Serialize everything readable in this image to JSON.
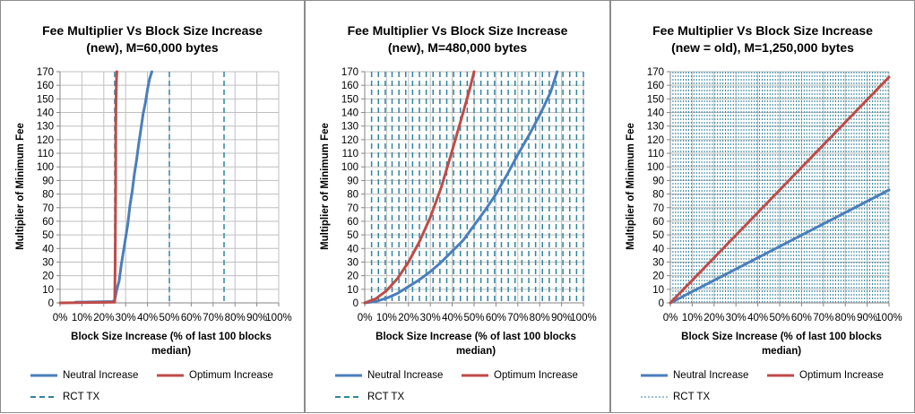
{
  "colors": {
    "neutral": "#4a7ebb",
    "optimum": "#be4b48",
    "rct": "#31859c",
    "grid": "#bfbfbf",
    "axis": "#868686"
  },
  "yticks": [
    "0",
    "10",
    "20",
    "30",
    "40",
    "50",
    "60",
    "70",
    "80",
    "90",
    "100",
    "110",
    "120",
    "130",
    "140",
    "150",
    "160",
    "170"
  ],
  "xticks": [
    "0%",
    "10%",
    "20%",
    "30%",
    "40%",
    "50%",
    "60%",
    "70%",
    "80%",
    "90%",
    "100%"
  ],
  "panels": [
    {
      "title_lines": [
        "Fee Multiplier Vs Block Size Increase",
        "(new), M=60,000 bytes"
      ],
      "ylabel": "Multiplier of Minimum Fee",
      "xlabel": "Block Size Increase (% of last 100 blocks\nmedian)",
      "legend": {
        "neutral": "Neutral Increase",
        "optimum": "Optimum Increase",
        "rct": "RCT TX"
      }
    },
    {
      "title_lines": [
        "Fee Multiplier Vs Block Size Increase",
        "(new), M=480,000 bytes"
      ],
      "ylabel": "Multiplier of Minimum Fee",
      "xlabel": "Block Size Increase (% of last 100 blocks\nmedian)",
      "legend": {
        "neutral": "Neutral Increase",
        "optimum": "Optimum Increase",
        "rct": "RCT TX"
      }
    },
    {
      "title_lines": [
        "Fee Multiplier Vs Block Size Increase",
        "(new = old), M=1,250,000 bytes"
      ],
      "ylabel": "Multiplier of Minimum Fee",
      "xlabel": "Block Size Increase (% of last 100 blocks\nmedian)",
      "legend": {
        "neutral": "Neutral Increase",
        "optimum": "Optimum Increase",
        "rct": "RCT TX"
      }
    }
  ],
  "chart_data": [
    {
      "type": "line",
      "title": "Fee Multiplier Vs Block Size Increase (new), M=60,000 bytes",
      "xlabel": "Block Size Increase (% of last 100 blocks median)",
      "ylabel": "Multiplier of Minimum Fee",
      "xlim": [
        0,
        100
      ],
      "ylim": [
        0,
        170
      ],
      "ytick_step": 10,
      "xtick_step": 10,
      "grid": true,
      "legend_position": "bottom",
      "series": [
        {
          "name": "Neutral Increase",
          "x": [
            7,
            24,
            25,
            26,
            27,
            28,
            29,
            30,
            31,
            32,
            33,
            34,
            35,
            36,
            37,
            38,
            39,
            40,
            41,
            42
          ],
          "y": [
            0.5,
            1,
            2,
            10,
            16,
            28,
            38,
            48,
            58,
            72,
            82,
            95,
            105,
            117,
            128,
            139,
            147,
            157,
            165,
            170
          ]
        },
        {
          "name": "Optimum Increase",
          "x": [
            0,
            25,
            25.2,
            25.4,
            25.5,
            25.6,
            25.8,
            26
          ],
          "y": [
            0,
            0.5,
            30,
            80,
            130,
            150,
            165,
            170
          ]
        }
      ],
      "rct_tx_x": [
        25,
        50,
        75
      ]
    },
    {
      "type": "line",
      "title": "Fee Multiplier Vs Block Size Increase (new), M=480,000 bytes",
      "xlabel": "Block Size Increase (% of last 100 blocks median)",
      "ylabel": "Multiplier of Minimum Fee",
      "xlim": [
        0,
        100
      ],
      "ylim": [
        0,
        170
      ],
      "ytick_step": 10,
      "xtick_step": 10,
      "grid": true,
      "legend_position": "bottom",
      "series": [
        {
          "name": "Neutral Increase",
          "x": [
            0,
            5,
            10,
            15,
            20,
            25,
            30,
            35,
            40,
            45,
            50,
            55,
            60,
            65,
            70,
            75,
            80,
            85,
            88
          ],
          "y": [
            0,
            1,
            3.5,
            7,
            12,
            17,
            23,
            30,
            38,
            46,
            57,
            68,
            80,
            94,
            109,
            123,
            138,
            155,
            170
          ]
        },
        {
          "name": "Optimum Increase",
          "x": [
            0,
            5,
            10,
            15,
            20,
            25,
            30,
            35,
            40,
            45,
            48,
            50
          ],
          "y": [
            0,
            3,
            9,
            18,
            30,
            45,
            63,
            85,
            112,
            140,
            157,
            170
          ]
        }
      ],
      "rct_tx_x_step": 3.125
    },
    {
      "type": "line",
      "title": "Fee Multiplier Vs Block Size Increase (new = old), M=1,250,000 bytes",
      "xlabel": "Block Size Increase (% of last 100 blocks median)",
      "ylabel": "Multiplier of Minimum Fee",
      "xlim": [
        0,
        100
      ],
      "ylim": [
        0,
        170
      ],
      "ytick_step": 10,
      "xtick_step": 10,
      "grid": true,
      "legend_position": "bottom",
      "series": [
        {
          "name": "Neutral Increase",
          "x": [
            0,
            100
          ],
          "y": [
            0,
            83
          ]
        },
        {
          "name": "Optimum Increase",
          "x": [
            0,
            100
          ],
          "y": [
            0,
            166
          ]
        }
      ],
      "rct_tx_x_step": 1.2
    }
  ]
}
